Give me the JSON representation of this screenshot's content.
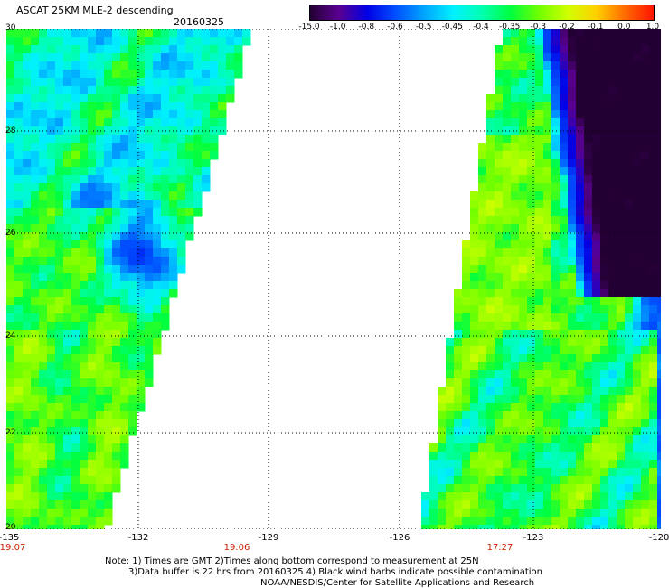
{
  "header": {
    "title": "ASCAT 25KM MLE-2 descending",
    "date": "20160325"
  },
  "colorbar": {
    "labels": [
      "-15.0",
      "-1.0",
      "-0.8",
      "-0.6",
      "-0.5",
      "-0.45",
      "-0.4",
      "-0.35",
      "-0.3",
      "-0.2",
      "-0.1",
      "0.0",
      "1.0"
    ],
    "colors": [
      "#230033",
      "#5a0090",
      "#0000e6",
      "#0050ff",
      "#00a6ff",
      "#00f0ff",
      "#00ffb0",
      "#00ff40",
      "#70ff00",
      "#d0ff00",
      "#ffd000",
      "#ff6a00",
      "#ff1500"
    ]
  },
  "axes": {
    "lat_labels": [
      "30",
      "28",
      "26",
      "24",
      "22",
      "20"
    ],
    "lon_labels": [
      "-135",
      "-132",
      "-129",
      "-126",
      "-123",
      "-120"
    ]
  },
  "times": [
    "19:07",
    "19:06",
    "17:27"
  ],
  "notes": {
    "line1": "Note: 1) Times are GMT 2)Times along bottom correspond to measurement at 25N",
    "line2": "3)Data buffer is 22 hrs from 20160325 4) Black wind barbs indicate possible contamination",
    "line3": "NOAA/NESDIS/Center for Satellite Applications and Research"
  }
}
